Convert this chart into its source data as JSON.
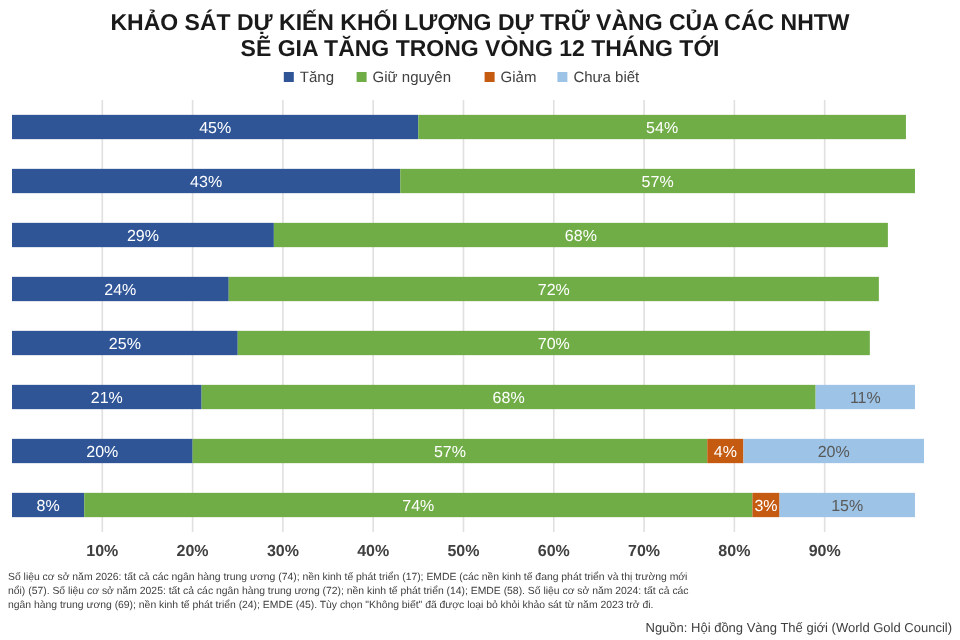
{
  "chart_data": {
    "type": "bar",
    "orientation": "horizontal",
    "stacked": true,
    "title": "KHẢO SÁT DỰ KIẾN KHỐI LƯỢNG DỰ TRỮ VÀNG CỦA CÁC NHTW\nSẼ GIA TĂNG TRONG VÒNG 12 THÁNG TỚI",
    "categories": [
      null,
      null,
      null,
      null,
      null,
      null,
      null,
      null
    ],
    "series": [
      {
        "name": "Tăng",
        "color": "#2f5597",
        "values": [
          45,
          43,
          29,
          24,
          25,
          21,
          20,
          8
        ],
        "value_labels": [
          "45%",
          "43%",
          "29%",
          "24%",
          "25%",
          "21%",
          "20%",
          "8%"
        ]
      },
      {
        "name": "Giữ nguyên",
        "color": "#70ad47",
        "values": [
          54,
          57,
          68,
          72,
          70,
          68,
          57,
          74
        ],
        "value_labels": [
          "54%",
          "57%",
          "68%",
          "72%",
          "70%",
          "68%",
          "57%",
          "74%"
        ]
      },
      {
        "name": "Giảm",
        "color": "#c55a11",
        "values": [
          null,
          null,
          null,
          null,
          null,
          null,
          4,
          3
        ],
        "value_labels": [
          null,
          null,
          null,
          null,
          null,
          null,
          "4%",
          "3%"
        ]
      },
      {
        "name": "Chưa biết",
        "color": "#9dc3e6",
        "values": [
          null,
          null,
          null,
          null,
          null,
          11,
          20,
          15
        ],
        "value_labels": [
          null,
          null,
          null,
          null,
          null,
          "11%",
          "20%",
          "15%"
        ]
      }
    ],
    "xlim": [
      0,
      101
    ],
    "xticks": [
      {
        "value": 10,
        "label": "10%"
      },
      {
        "value": 20,
        "label": "20%"
      },
      {
        "value": 30,
        "label": "30%"
      },
      {
        "value": 40,
        "label": "40%"
      },
      {
        "value": 50,
        "label": "50%"
      },
      {
        "value": 60,
        "label": "60%"
      },
      {
        "value": 70,
        "label": "70%"
      },
      {
        "value": 80,
        "label": "80%"
      },
      {
        "value": 90,
        "label": "90%"
      }
    ],
    "grid": "x",
    "legend": "top",
    "annotations": [
      "Số liệu cơ sở năm 2026: tất cả các ngân hàng trung ương (74); nền kinh tế phát triển (17); EMDE (các nền kinh tế đang phát triển và thị trường mới nổi) (57). Số liệu cơ sở năm 2025: tất cả các ngân hàng trung ương (72); nền kinh tế phát triển (14); EMDE (58). Số liệu cơ sở năm 2024: tất cả các ngân hàng trung ương (69); nền kinh tế phát triển (24); EMDE (45). Tùy chọn \"Không biết\" đã được loại bỏ khỏi khảo sát từ năm 2023 trở đi.",
      "Nguồn: Hội đồng Vàng Thế giới (World Gold Council)"
    ]
  }
}
